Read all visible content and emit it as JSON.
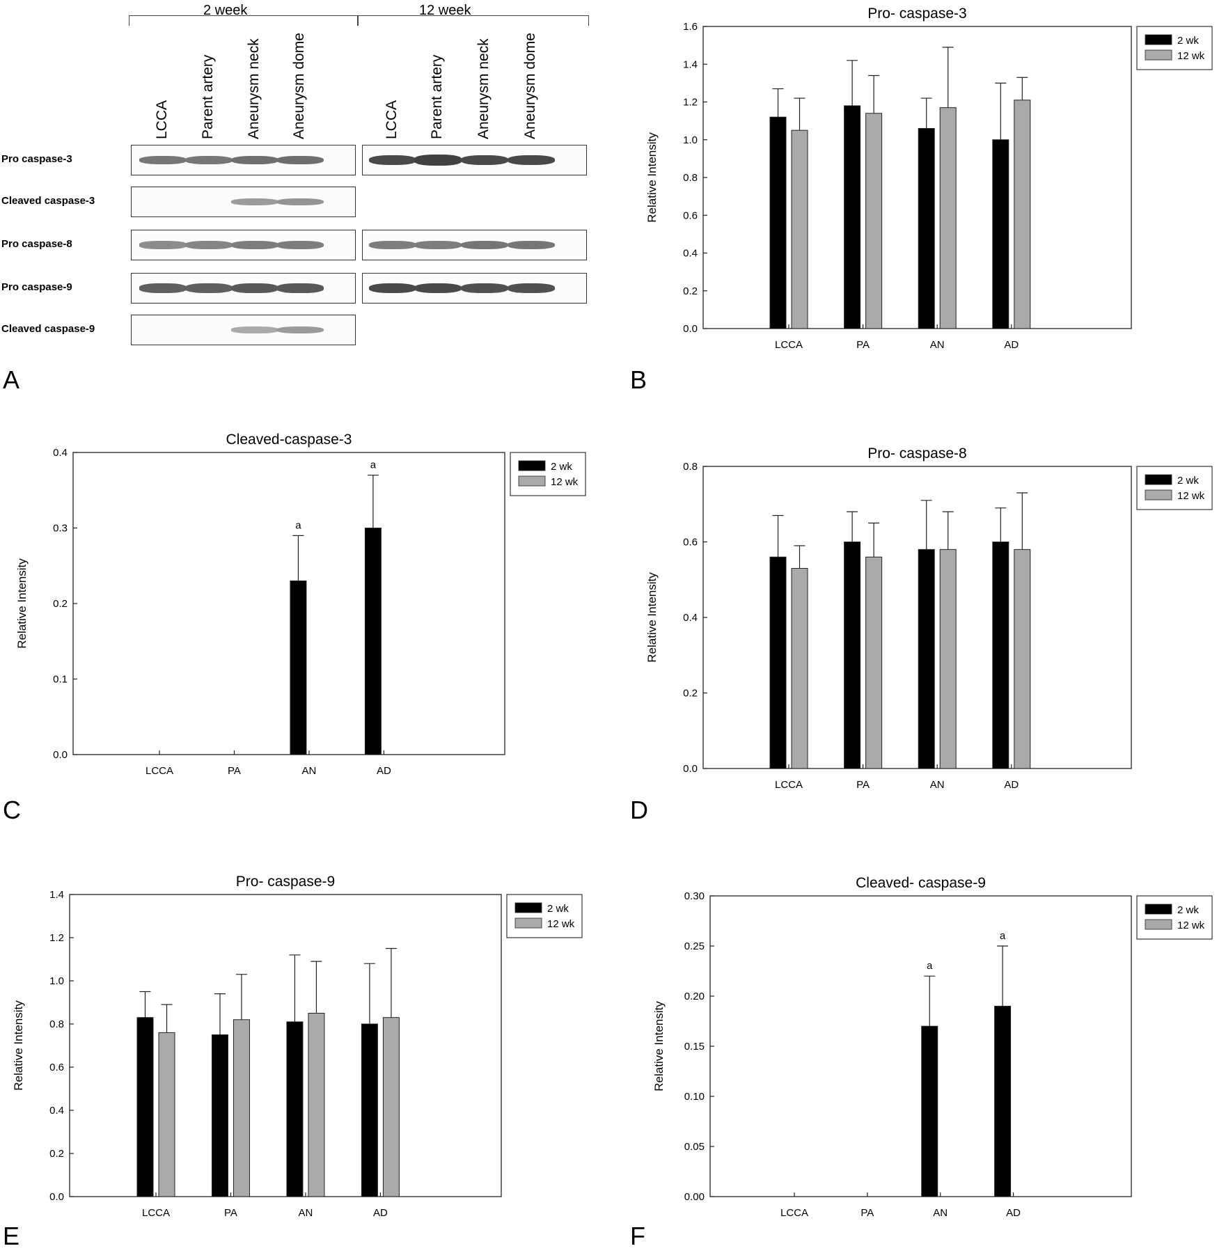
{
  "panels": {
    "A": "A",
    "B": "B",
    "C": "C",
    "D": "D",
    "E": "E",
    "F": "F"
  },
  "blot": {
    "groups": [
      "2 week",
      "12 week"
    ],
    "lanes_2wk": [
      "LCCA",
      "Parent artery",
      "Aneurysm neck",
      "Aneurysm dome"
    ],
    "lanes_12wk": [
      "LCCA",
      "Parent artery",
      "Aneurysm neck",
      "Aneurysm dome"
    ],
    "rows": [
      {
        "label": "Pro caspase-3",
        "bands_2wk": [
          0.55,
          0.55,
          0.6,
          0.6
        ],
        "bands_12wk": [
          0.85,
          0.9,
          0.85,
          0.85
        ]
      },
      {
        "label": "Cleaved caspase-3",
        "bands_2wk": [
          0,
          0,
          0.3,
          0.35
        ],
        "bands_12wk": null
      },
      {
        "label": "Pro caspase-8",
        "bands_2wk": [
          0.4,
          0.45,
          0.5,
          0.5
        ],
        "bands_12wk": [
          0.5,
          0.5,
          0.55,
          0.55
        ]
      },
      {
        "label": "Pro caspase-9",
        "bands_2wk": [
          0.7,
          0.7,
          0.75,
          0.75
        ],
        "bands_12wk": [
          0.85,
          0.85,
          0.8,
          0.8
        ]
      },
      {
        "label": "Cleaved caspase-9",
        "bands_2wk": [
          0,
          0,
          0.2,
          0.3
        ],
        "bands_12wk": null
      }
    ]
  },
  "chart_data": [
    {
      "panel": "B",
      "type": "bar",
      "title": "Pro- caspase-3",
      "categories": [
        "LCCA",
        "PA",
        "AN",
        "AD"
      ],
      "ylabel": "Relative Intensity",
      "xlabel": "",
      "ylim": [
        0,
        1.6
      ],
      "yticks": [
        "0.0",
        "0.2",
        "0.4",
        "0.6",
        "0.8",
        "1.0",
        "1.2",
        "1.4",
        "1.6"
      ],
      "series": [
        {
          "name": "2 wk",
          "color": "#000000",
          "values": [
            1.12,
            1.18,
            1.06,
            1.0
          ],
          "errors": [
            1.27,
            1.42,
            1.22,
            1.3
          ]
        },
        {
          "name": "12 wk",
          "color": "#aaaaaa",
          "values": [
            1.05,
            1.14,
            1.17,
            1.21
          ],
          "errors": [
            1.22,
            1.34,
            1.49,
            1.33
          ]
        }
      ],
      "annotations": [],
      "legend": "top-right"
    },
    {
      "panel": "C",
      "type": "bar",
      "title": "Cleaved-caspase-3",
      "categories": [
        "LCCA",
        "PA",
        "AN",
        "AD"
      ],
      "ylabel": "Relative Intensity",
      "xlabel": "",
      "ylim": [
        0,
        0.4
      ],
      "yticks": [
        "0.0",
        "0.1",
        "0.2",
        "0.3",
        "0.4"
      ],
      "series": [
        {
          "name": "2 wk",
          "color": "#000000",
          "values": [
            0,
            0,
            0.23,
            0.3
          ],
          "errors": [
            null,
            null,
            0.29,
            0.37
          ]
        },
        {
          "name": "12 wk",
          "color": "#aaaaaa",
          "values": [
            0,
            0,
            0,
            0
          ],
          "errors": [
            null,
            null,
            null,
            null
          ]
        }
      ],
      "annotations": [
        {
          "category": 2,
          "series": 0,
          "text": "a"
        },
        {
          "category": 3,
          "series": 0,
          "text": "a"
        }
      ],
      "legend": "top-right"
    },
    {
      "panel": "D",
      "type": "bar",
      "title": "Pro- caspase-8",
      "categories": [
        "LCCA",
        "PA",
        "AN",
        "AD"
      ],
      "ylabel": "Relative Intensity",
      "xlabel": "",
      "ylim": [
        0,
        0.8
      ],
      "yticks": [
        "0.0",
        "0.2",
        "0.4",
        "0.6",
        "0.8"
      ],
      "series": [
        {
          "name": "2 wk",
          "color": "#000000",
          "values": [
            0.56,
            0.6,
            0.58,
            0.6
          ],
          "errors": [
            0.67,
            0.68,
            0.71,
            0.69
          ]
        },
        {
          "name": "12 wk",
          "color": "#aaaaaa",
          "values": [
            0.53,
            0.56,
            0.58,
            0.58
          ],
          "errors": [
            0.59,
            0.65,
            0.68,
            0.73
          ]
        }
      ],
      "annotations": [],
      "legend": "top-right"
    },
    {
      "panel": "E",
      "type": "bar",
      "title": "Pro- caspase-9",
      "categories": [
        "LCCA",
        "PA",
        "AN",
        "AD"
      ],
      "ylabel": "Relative Intensity",
      "xlabel": "",
      "ylim": [
        0,
        1.4
      ],
      "yticks": [
        "0.0",
        "0.2",
        "0.4",
        "0.6",
        "0.8",
        "1.0",
        "1.2",
        "1.4"
      ],
      "series": [
        {
          "name": "2 wk",
          "color": "#000000",
          "values": [
            0.83,
            0.75,
            0.81,
            0.8
          ],
          "errors": [
            0.95,
            0.94,
            1.12,
            1.08
          ]
        },
        {
          "name": "12 wk",
          "color": "#aaaaaa",
          "values": [
            0.76,
            0.82,
            0.85,
            0.83
          ],
          "errors": [
            0.89,
            1.03,
            1.09,
            1.15
          ]
        }
      ],
      "annotations": [],
      "legend": "top-right"
    },
    {
      "panel": "F",
      "type": "bar",
      "title": "Cleaved- caspase-9",
      "categories": [
        "LCCA",
        "PA",
        "AN",
        "AD"
      ],
      "ylabel": "Relative Intensity",
      "xlabel": "",
      "ylim": [
        0,
        0.3
      ],
      "yticks": [
        "0.00",
        "0.05",
        "0.10",
        "0.15",
        "0.20",
        "0.25",
        "0.30"
      ],
      "series": [
        {
          "name": "2 wk",
          "color": "#000000",
          "values": [
            0,
            0,
            0.17,
            0.19
          ],
          "errors": [
            null,
            null,
            0.22,
            0.25
          ]
        },
        {
          "name": "12 wk",
          "color": "#aaaaaa",
          "values": [
            0,
            0,
            0,
            0
          ],
          "errors": [
            null,
            null,
            null,
            null
          ]
        }
      ],
      "annotations": [
        {
          "category": 2,
          "series": 0,
          "text": "a"
        },
        {
          "category": 3,
          "series": 0,
          "text": "a"
        }
      ],
      "legend": "top-right"
    }
  ]
}
